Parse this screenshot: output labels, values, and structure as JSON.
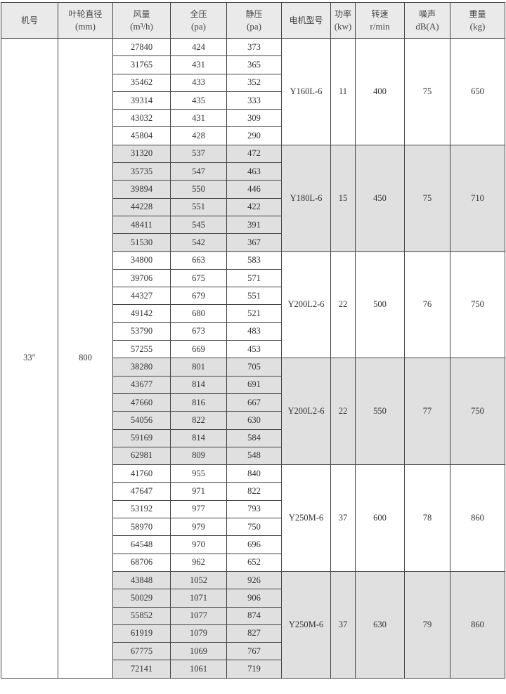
{
  "headers": [
    {
      "name": "机号",
      "unit": ""
    },
    {
      "name": "叶轮直径",
      "unit": "(mm)"
    },
    {
      "name": "风量",
      "unit": "(m³/h)"
    },
    {
      "name": "全压",
      "unit": "(pa)"
    },
    {
      "name": "静压",
      "unit": "(pa)"
    },
    {
      "name": "电机型号",
      "unit": ""
    },
    {
      "name": "功率",
      "unit": "(kw)"
    },
    {
      "name": "转速",
      "unit": "r/min"
    },
    {
      "name": "噪声",
      "unit": "dB(A)"
    },
    {
      "name": "重量",
      "unit": "(kg)"
    }
  ],
  "model": "33″",
  "impeller_diameter": "800",
  "shading_color": "#e0e0e0",
  "groups": [
    {
      "motor": "Y160L-6",
      "power": "11",
      "speed": "400",
      "noise": "75",
      "weight": "650",
      "rows": [
        [
          "27840",
          "424",
          "373"
        ],
        [
          "31765",
          "431",
          "365"
        ],
        [
          "35462",
          "433",
          "352"
        ],
        [
          "39314",
          "435",
          "333"
        ],
        [
          "43032",
          "431",
          "309"
        ],
        [
          "45804",
          "428",
          "290"
        ]
      ]
    },
    {
      "motor": "Y180L-6",
      "power": "15",
      "speed": "450",
      "noise": "75",
      "weight": "710",
      "rows": [
        [
          "31320",
          "537",
          "472"
        ],
        [
          "35735",
          "547",
          "463"
        ],
        [
          "39894",
          "550",
          "446"
        ],
        [
          "44228",
          "551",
          "422"
        ],
        [
          "48411",
          "545",
          "391"
        ],
        [
          "51530",
          "542",
          "367"
        ]
      ]
    },
    {
      "motor": "Y200L2-6",
      "power": "22",
      "speed": "500",
      "noise": "76",
      "weight": "750",
      "rows": [
        [
          "34800",
          "663",
          "583"
        ],
        [
          "39706",
          "675",
          "571"
        ],
        [
          "44327",
          "679",
          "551"
        ],
        [
          "49142",
          "680",
          "521"
        ],
        [
          "53790",
          "673",
          "483"
        ],
        [
          "57255",
          "669",
          "453"
        ]
      ]
    },
    {
      "motor": "Y200L2-6",
      "power": "22",
      "speed": "550",
      "noise": "77",
      "weight": "750",
      "rows": [
        [
          "38280",
          "801",
          "705"
        ],
        [
          "43677",
          "814",
          "691"
        ],
        [
          "47660",
          "816",
          "667"
        ],
        [
          "54056",
          "822",
          "630"
        ],
        [
          "59169",
          "814",
          "584"
        ],
        [
          "62981",
          "809",
          "548"
        ]
      ]
    },
    {
      "motor": "Y250M-6",
      "power": "37",
      "speed": "600",
      "noise": "78",
      "weight": "860",
      "rows": [
        [
          "41760",
          "955",
          "840"
        ],
        [
          "47647",
          "971",
          "822"
        ],
        [
          "53192",
          "977",
          "793"
        ],
        [
          "58970",
          "979",
          "750"
        ],
        [
          "64548",
          "970",
          "696"
        ],
        [
          "68706",
          "962",
          "652"
        ]
      ]
    },
    {
      "motor": "Y250M-6",
      "power": "37",
      "speed": "630",
      "noise": "79",
      "weight": "860",
      "rows": [
        [
          "43848",
          "1052",
          "926"
        ],
        [
          "50029",
          "1071",
          "906"
        ],
        [
          "55852",
          "1077",
          "874"
        ],
        [
          "61919",
          "1079",
          "827"
        ],
        [
          "67775",
          "1069",
          "767"
        ],
        [
          "72141",
          "1061",
          "719"
        ]
      ]
    }
  ]
}
